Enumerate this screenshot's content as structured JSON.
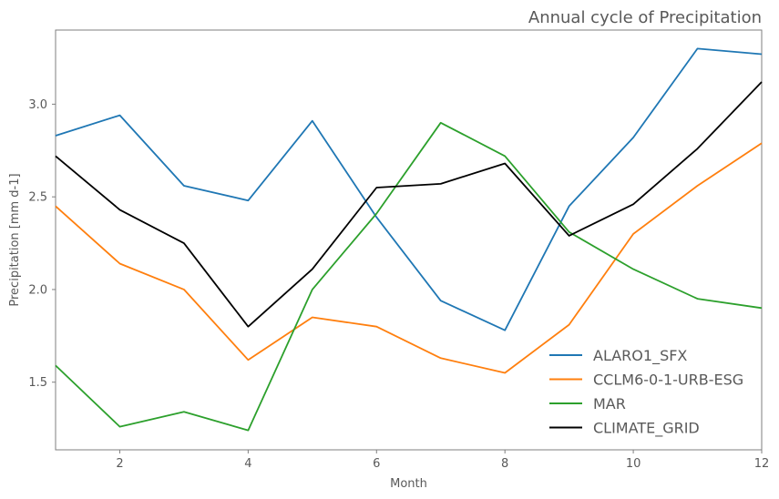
{
  "chart_data": {
    "type": "line",
    "title": "Annual cycle of Precipitation",
    "xlabel": "Month",
    "ylabel": "Precipitation [mm d-1]",
    "xlim": [
      1,
      12
    ],
    "ylim": [
      1.135,
      3.4
    ],
    "xticks": [
      2,
      4,
      6,
      8,
      10,
      12
    ],
    "yticks": [
      1.5,
      2.0,
      2.5,
      3.0
    ],
    "grid": false,
    "legend_position": "lower-right",
    "x": [
      1,
      2,
      3,
      4,
      5,
      6,
      7,
      8,
      9,
      10,
      11,
      12
    ],
    "series": [
      {
        "name": "ALARO1_SFX",
        "color": "#1f77b4",
        "values": [
          2.83,
          2.94,
          2.56,
          2.48,
          2.91,
          2.39,
          1.94,
          1.78,
          2.45,
          2.82,
          3.3,
          3.27
        ]
      },
      {
        "name": "CCLM6-0-1-URB-ESG",
        "color": "#ff7f0e",
        "values": [
          2.45,
          2.14,
          2.0,
          1.62,
          1.85,
          1.8,
          1.63,
          1.55,
          1.81,
          2.3,
          2.56,
          2.79
        ]
      },
      {
        "name": "MAR",
        "color": "#2ca02c",
        "values": [
          1.59,
          1.26,
          1.34,
          1.24,
          2.0,
          2.41,
          2.9,
          2.72,
          2.31,
          2.11,
          1.95,
          1.9
        ]
      },
      {
        "name": "CLIMATE_GRID",
        "color": "#000000",
        "values": [
          2.72,
          2.43,
          2.25,
          1.8,
          2.11,
          2.55,
          2.57,
          2.68,
          2.29,
          2.46,
          2.76,
          3.12
        ]
      }
    ]
  }
}
